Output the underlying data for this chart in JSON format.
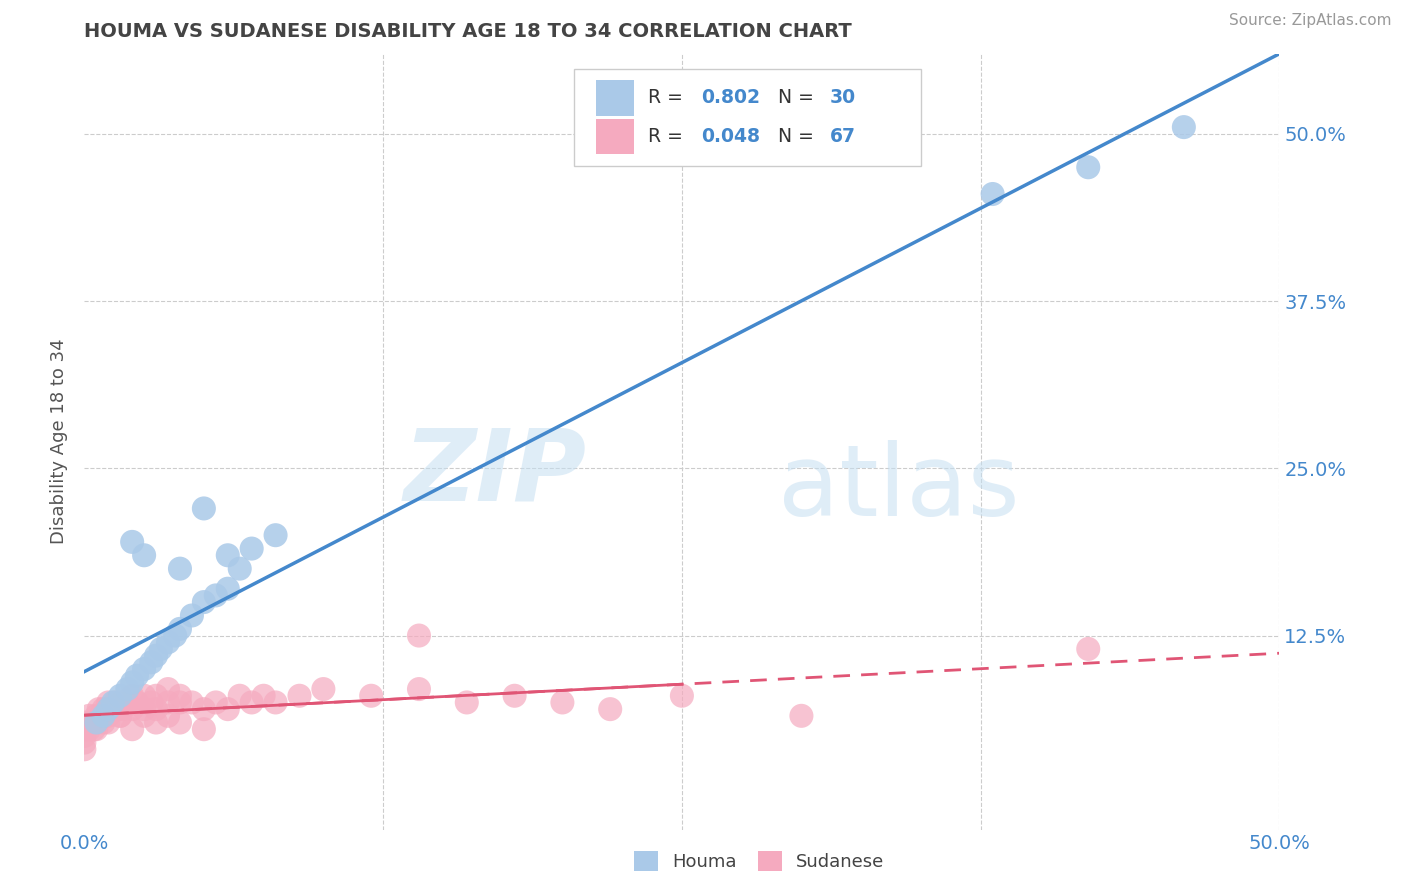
{
  "title": "HOUMA VS SUDANESE DISABILITY AGE 18 TO 34 CORRELATION CHART",
  "source_text": "Source: ZipAtlas.com",
  "ylabel": "Disability Age 18 to 34",
  "xlim": [
    0.0,
    0.5
  ],
  "ylim": [
    -0.02,
    0.56
  ],
  "xticks": [
    0.0,
    0.125,
    0.25,
    0.375,
    0.5
  ],
  "xtick_labels": [
    "0.0%",
    "",
    "",
    "",
    "50.0%"
  ],
  "yticks": [
    0.0,
    0.125,
    0.25,
    0.375,
    0.5
  ],
  "ytick_labels_right": [
    "",
    "12.5%",
    "25.0%",
    "37.5%",
    "50.0%"
  ],
  "houma_R": "0.802",
  "houma_N": "30",
  "sudanese_R": "0.048",
  "sudanese_N": "67",
  "houma_color": "#aac9e8",
  "sudanese_color": "#f5aabf",
  "houma_line_color": "#4488cc",
  "sudanese_line_color": "#e05575",
  "legend_label_houma": "Houma",
  "legend_label_sudanese": "Sudanese",
  "watermark_zip": "ZIP",
  "watermark_atlas": "atlas",
  "background_color": "#ffffff",
  "grid_color": "#cccccc",
  "title_color": "#444444",
  "axis_label_color": "#4488cc",
  "houma_x": [
    0.005,
    0.008,
    0.01,
    0.012,
    0.015,
    0.018,
    0.02,
    0.022,
    0.025,
    0.028,
    0.03,
    0.032,
    0.035,
    0.038,
    0.04,
    0.045,
    0.05,
    0.055,
    0.06,
    0.065,
    0.07,
    0.08,
    0.04,
    0.38,
    0.42,
    0.46,
    0.05,
    0.06,
    0.02,
    0.025
  ],
  "houma_y": [
    0.06,
    0.065,
    0.07,
    0.075,
    0.08,
    0.085,
    0.09,
    0.095,
    0.1,
    0.105,
    0.11,
    0.115,
    0.12,
    0.125,
    0.13,
    0.14,
    0.15,
    0.155,
    0.16,
    0.175,
    0.19,
    0.2,
    0.175,
    0.455,
    0.475,
    0.505,
    0.22,
    0.185,
    0.195,
    0.185
  ],
  "sudanese_x": [
    0.0,
    0.0,
    0.0,
    0.0,
    0.0,
    0.002,
    0.002,
    0.003,
    0.004,
    0.005,
    0.005,
    0.006,
    0.007,
    0.008,
    0.008,
    0.009,
    0.01,
    0.01,
    0.01,
    0.012,
    0.013,
    0.014,
    0.015,
    0.015,
    0.016,
    0.018,
    0.02,
    0.02,
    0.022,
    0.025,
    0.025,
    0.028,
    0.03,
    0.03,
    0.035,
    0.035,
    0.04,
    0.04,
    0.045,
    0.05,
    0.055,
    0.06,
    0.065,
    0.07,
    0.075,
    0.08,
    0.09,
    0.1,
    0.12,
    0.14,
    0.16,
    0.18,
    0.2,
    0.22,
    0.25,
    0.14,
    0.3,
    0.42,
    0.005,
    0.01,
    0.015,
    0.02,
    0.025,
    0.03,
    0.035,
    0.04,
    0.05
  ],
  "sudanese_y": [
    0.04,
    0.045,
    0.05,
    0.055,
    0.06,
    0.055,
    0.065,
    0.06,
    0.055,
    0.06,
    0.065,
    0.07,
    0.065,
    0.06,
    0.07,
    0.065,
    0.07,
    0.075,
    0.065,
    0.07,
    0.075,
    0.07,
    0.065,
    0.075,
    0.07,
    0.075,
    0.07,
    0.08,
    0.075,
    0.07,
    0.08,
    0.075,
    0.07,
    0.08,
    0.075,
    0.085,
    0.075,
    0.08,
    0.075,
    0.07,
    0.075,
    0.07,
    0.08,
    0.075,
    0.08,
    0.075,
    0.08,
    0.085,
    0.08,
    0.085,
    0.075,
    0.08,
    0.075,
    0.07,
    0.08,
    0.125,
    0.065,
    0.115,
    0.055,
    0.06,
    0.065,
    0.055,
    0.065,
    0.06,
    0.065,
    0.06,
    0.055
  ]
}
